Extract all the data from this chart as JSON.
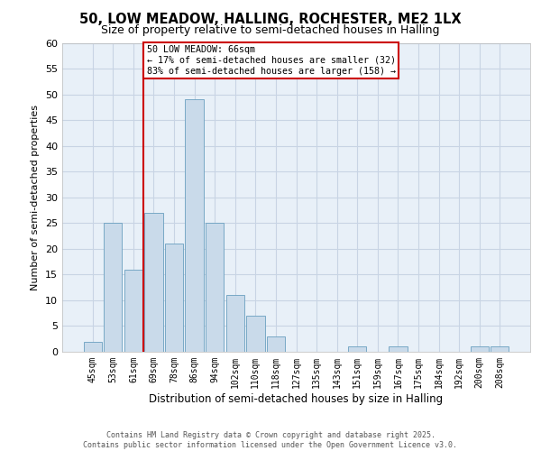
{
  "title1": "50, LOW MEADOW, HALLING, ROCHESTER, ME2 1LX",
  "title2": "Size of property relative to semi-detached houses in Halling",
  "xlabel": "Distribution of semi-detached houses by size in Halling",
  "ylabel": "Number of semi-detached properties",
  "footer1": "Contains HM Land Registry data © Crown copyright and database right 2025.",
  "footer2": "Contains public sector information licensed under the Open Government Licence v3.0.",
  "bar_labels": [
    "45sqm",
    "53sqm",
    "61sqm",
    "69sqm",
    "78sqm",
    "86sqm",
    "94sqm",
    "102sqm",
    "110sqm",
    "118sqm",
    "127sqm",
    "135sqm",
    "143sqm",
    "151sqm",
    "159sqm",
    "167sqm",
    "175sqm",
    "184sqm",
    "192sqm",
    "200sqm",
    "208sqm"
  ],
  "bar_values": [
    2,
    25,
    16,
    27,
    21,
    49,
    25,
    11,
    7,
    3,
    0,
    0,
    0,
    1,
    0,
    1,
    0,
    0,
    0,
    1,
    1
  ],
  "bar_color": "#c9daea",
  "bar_edge_color": "#6a9fc0",
  "grid_color": "#c8d4e4",
  "background_color": "#e8f0f8",
  "annotation_box_color": "#cc0000",
  "property_line_color": "#cc0000",
  "property_bin_index": 2,
  "annotation_text": "50 LOW MEADOW: 66sqm\n← 17% of semi-detached houses are smaller (32)\n83% of semi-detached houses are larger (158) →",
  "ylim": [
    0,
    60
  ],
  "yticks": [
    0,
    5,
    10,
    15,
    20,
    25,
    30,
    35,
    40,
    45,
    50,
    55,
    60
  ]
}
